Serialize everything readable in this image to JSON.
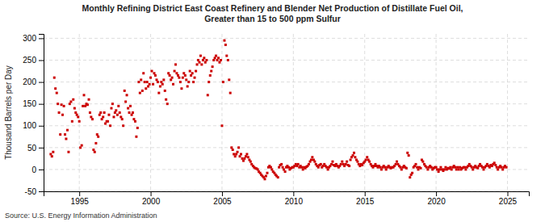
{
  "chart_data": {
    "type": "scatter",
    "title": [
      "Monthly Refining District East Coast Refinery and Blender Net Production of Distillate Fuel Oil,",
      "Greater than 15 to 500 ppm Sulfur"
    ],
    "ylabel": "Thousand Barrels per Day",
    "source": "Source: U.S. Energy Information Administration",
    "color": "#cc0000",
    "marker": "square",
    "grid": true,
    "xlim": [
      1992.5,
      2026.5
    ],
    "xticks": [
      1995,
      2000,
      2005,
      2010,
      2015,
      2020,
      2025
    ],
    "ylim": [
      -50,
      310
    ],
    "yticks": [
      -50,
      0,
      50,
      100,
      150,
      200,
      250,
      300
    ],
    "x": [
      1993.0,
      1993.08,
      1993.17,
      1993.25,
      1993.33,
      1993.42,
      1993.5,
      1993.58,
      1993.67,
      1993.75,
      1993.83,
      1993.92,
      1994.0,
      1994.08,
      1994.17,
      1994.25,
      1994.33,
      1994.42,
      1994.5,
      1994.58,
      1994.67,
      1994.75,
      1994.83,
      1994.92,
      1995.0,
      1995.08,
      1995.17,
      1995.25,
      1995.33,
      1995.42,
      1995.5,
      1995.58,
      1995.67,
      1995.75,
      1995.83,
      1995.92,
      1996.0,
      1996.08,
      1996.17,
      1996.25,
      1996.33,
      1996.42,
      1996.5,
      1996.58,
      1996.67,
      1996.75,
      1996.83,
      1996.92,
      1997.0,
      1997.08,
      1997.17,
      1997.25,
      1997.33,
      1997.42,
      1997.5,
      1997.58,
      1997.67,
      1997.75,
      1997.83,
      1997.92,
      1998.0,
      1998.08,
      1998.17,
      1998.25,
      1998.33,
      1998.42,
      1998.5,
      1998.58,
      1998.67,
      1998.75,
      1998.83,
      1998.92,
      1999.0,
      1999.08,
      1999.17,
      1999.25,
      1999.33,
      1999.42,
      1999.5,
      1999.58,
      1999.67,
      1999.75,
      1999.83,
      1999.92,
      2000.0,
      2000.08,
      2000.17,
      2000.25,
      2000.33,
      2000.42,
      2000.5,
      2000.58,
      2000.67,
      2000.75,
      2000.83,
      2000.92,
      2001.0,
      2001.08,
      2001.17,
      2001.25,
      2001.33,
      2001.42,
      2001.5,
      2001.58,
      2001.67,
      2001.75,
      2001.83,
      2001.92,
      2002.0,
      2002.08,
      2002.17,
      2002.25,
      2002.33,
      2002.42,
      2002.5,
      2002.58,
      2002.67,
      2002.75,
      2002.83,
      2002.92,
      2003.0,
      2003.08,
      2003.17,
      2003.25,
      2003.33,
      2003.42,
      2003.5,
      2003.58,
      2003.67,
      2003.75,
      2003.83,
      2003.92,
      2004.0,
      2004.08,
      2004.17,
      2004.25,
      2004.33,
      2004.42,
      2004.5,
      2004.58,
      2004.67,
      2004.75,
      2004.83,
      2004.92,
      2005.0,
      2005.08,
      2005.17,
      2005.25,
      2005.33,
      2005.42,
      2005.5,
      2005.58,
      2005.67,
      2005.75,
      2005.83,
      2005.92,
      2006.0,
      2006.08,
      2006.17,
      2006.25,
      2006.33,
      2006.42,
      2006.5,
      2006.58,
      2006.67,
      2006.75,
      2006.83,
      2006.92,
      2007.0,
      2007.08,
      2007.17,
      2007.25,
      2007.33,
      2007.42,
      2007.5,
      2007.58,
      2007.67,
      2007.75,
      2007.83,
      2007.92,
      2008.0,
      2008.08,
      2008.17,
      2008.25,
      2008.33,
      2008.42,
      2008.5,
      2008.58,
      2008.67,
      2008.75,
      2008.83,
      2008.92,
      2009.0,
      2009.08,
      2009.17,
      2009.25,
      2009.33,
      2009.42,
      2009.5,
      2009.58,
      2009.67,
      2009.75,
      2009.83,
      2009.92,
      2010.0,
      2010.08,
      2010.17,
      2010.25,
      2010.33,
      2010.42,
      2010.5,
      2010.58,
      2010.67,
      2010.75,
      2010.83,
      2010.92,
      2011.0,
      2011.08,
      2011.17,
      2011.25,
      2011.33,
      2011.42,
      2011.5,
      2011.58,
      2011.67,
      2011.75,
      2011.83,
      2011.92,
      2012.0,
      2012.08,
      2012.17,
      2012.25,
      2012.33,
      2012.42,
      2012.5,
      2012.58,
      2012.67,
      2012.75,
      2012.83,
      2012.92,
      2013.0,
      2013.08,
      2013.17,
      2013.25,
      2013.33,
      2013.42,
      2013.5,
      2013.58,
      2013.67,
      2013.75,
      2013.83,
      2013.92,
      2014.0,
      2014.08,
      2014.17,
      2014.25,
      2014.33,
      2014.42,
      2014.5,
      2014.58,
      2014.67,
      2014.75,
      2014.83,
      2014.92,
      2015.0,
      2015.08,
      2015.17,
      2015.25,
      2015.33,
      2015.42,
      2015.5,
      2015.58,
      2015.67,
      2015.75,
      2015.83,
      2015.92,
      2016.0,
      2016.08,
      2016.17,
      2016.25,
      2016.33,
      2016.42,
      2016.5,
      2016.58,
      2016.67,
      2016.75,
      2016.83,
      2016.92,
      2017.0,
      2017.08,
      2017.17,
      2017.25,
      2017.33,
      2017.42,
      2017.5,
      2017.58,
      2017.67,
      2017.75,
      2017.83,
      2017.92,
      2018.0,
      2018.08,
      2018.17,
      2018.25,
      2018.33,
      2018.42,
      2018.5,
      2018.58,
      2018.67,
      2018.75,
      2018.83,
      2018.92,
      2019.0,
      2019.08,
      2019.17,
      2019.25,
      2019.33,
      2019.42,
      2019.5,
      2019.58,
      2019.67,
      2019.75,
      2019.83,
      2019.92,
      2020.0,
      2020.08,
      2020.17,
      2020.25,
      2020.33,
      2020.42,
      2020.5,
      2020.58,
      2020.67,
      2020.75,
      2020.83,
      2020.92,
      2021.0,
      2021.08,
      2021.17,
      2021.25,
      2021.33,
      2021.42,
      2021.5,
      2021.58,
      2021.67,
      2021.75,
      2021.83,
      2021.92,
      2022.0,
      2022.08,
      2022.17,
      2022.25,
      2022.33,
      2022.42,
      2022.5,
      2022.58,
      2022.67,
      2022.75,
      2022.83,
      2022.92,
      2023.0,
      2023.08,
      2023.17,
      2023.25,
      2023.33,
      2023.42,
      2023.5,
      2023.58,
      2023.67,
      2023.75,
      2023.83,
      2023.92,
      2024.0,
      2024.08,
      2024.17,
      2024.25,
      2024.33,
      2024.42,
      2024.5,
      2024.58,
      2024.67,
      2024.75,
      2024.83,
      2024.92
    ],
    "values": [
      35,
      30,
      40,
      210,
      185,
      175,
      150,
      130,
      80,
      148,
      125,
      145,
      80,
      70,
      90,
      40,
      150,
      155,
      110,
      160,
      140,
      130,
      125,
      120,
      110,
      50,
      55,
      145,
      170,
      145,
      150,
      148,
      160,
      130,
      120,
      115,
      45,
      40,
      60,
      80,
      75,
      125,
      130,
      115,
      120,
      130,
      105,
      110,
      110,
      125,
      100,
      140,
      150,
      120,
      130,
      135,
      125,
      145,
      130,
      120,
      115,
      100,
      180,
      155,
      170,
      140,
      130,
      145,
      125,
      130,
      115,
      110,
      75,
      95,
      200,
      175,
      205,
      180,
      220,
      200,
      185,
      200,
      190,
      195,
      210,
      225,
      195,
      220,
      215,
      205,
      200,
      175,
      190,
      200,
      195,
      205,
      180,
      160,
      150,
      220,
      215,
      205,
      210,
      195,
      225,
      240,
      220,
      215,
      210,
      200,
      185,
      210,
      220,
      215,
      205,
      190,
      200,
      225,
      215,
      220,
      200,
      210,
      225,
      240,
      250,
      245,
      260,
      240,
      250,
      255,
      245,
      250,
      170,
      200,
      215,
      225,
      235,
      250,
      255,
      260,
      250,
      255,
      245,
      250,
      100,
      200,
      295,
      285,
      260,
      250,
      205,
      175,
      50,
      45,
      35,
      30,
      35,
      40,
      50,
      30,
      35,
      25,
      20,
      25,
      30,
      35,
      28,
      22,
      18,
      12,
      8,
      5,
      3,
      2,
      0,
      -5,
      -8,
      -12,
      -15,
      -18,
      -22,
      -15,
      -8,
      5,
      8,
      5,
      0,
      -5,
      -8,
      -12,
      -15,
      -18,
      5,
      10,
      12,
      5,
      0,
      -5,
      5,
      8,
      5,
      0,
      3,
      5,
      5,
      8,
      12,
      8,
      12,
      5,
      8,
      5,
      0,
      5,
      3,
      6,
      8,
      12,
      18,
      22,
      28,
      22,
      18,
      12,
      8,
      5,
      10,
      12,
      5,
      8,
      12,
      8,
      5,
      0,
      5,
      8,
      12,
      18,
      10,
      8,
      12,
      8,
      5,
      8,
      12,
      18,
      12,
      8,
      12,
      18,
      10,
      8,
      22,
      28,
      32,
      38,
      28,
      22,
      18,
      12,
      8,
      12,
      10,
      15,
      18,
      22,
      28,
      22,
      18,
      12,
      8,
      5,
      8,
      12,
      8,
      5,
      8,
      5,
      0,
      5,
      8,
      5,
      0,
      5,
      8,
      5,
      3,
      5,
      5,
      8,
      12,
      18,
      12,
      8,
      5,
      0,
      5,
      8,
      5,
      3,
      38,
      32,
      -18,
      -12,
      -8,
      5,
      8,
      12,
      5,
      0,
      5,
      3,
      22,
      18,
      12,
      8,
      5,
      0,
      5,
      8,
      5,
      0,
      3,
      5,
      5,
      0,
      -5,
      0,
      5,
      0,
      -3,
      0,
      5,
      0,
      3,
      2,
      5,
      0,
      5,
      8,
      5,
      0,
      5,
      0,
      5,
      0,
      3,
      5,
      5,
      0,
      5,
      8,
      12,
      8,
      5,
      0,
      5,
      8,
      5,
      3,
      8,
      12,
      8,
      5,
      0,
      5,
      8,
      12,
      8,
      5,
      10,
      8,
      12,
      15,
      10,
      5,
      0,
      5,
      8,
      5,
      0,
      5,
      8,
      5
    ]
  }
}
